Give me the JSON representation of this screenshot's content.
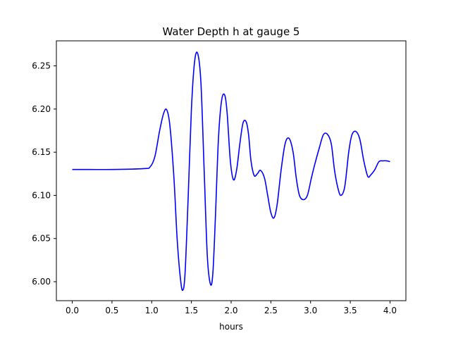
{
  "chart_data": {
    "type": "line",
    "title": "Water Depth h at gauge 5",
    "xlabel": "hours",
    "ylabel": "",
    "xlim": [
      -0.2,
      4.2
    ],
    "ylim": [
      5.978,
      6.279
    ],
    "xticks": [
      {
        "value": 0.0,
        "label": "0.0"
      },
      {
        "value": 0.5,
        "label": "0.5"
      },
      {
        "value": 1.0,
        "label": "1.0"
      },
      {
        "value": 1.5,
        "label": "1.5"
      },
      {
        "value": 2.0,
        "label": "2.0"
      },
      {
        "value": 2.5,
        "label": "2.5"
      },
      {
        "value": 3.0,
        "label": "3.0"
      },
      {
        "value": 3.5,
        "label": "3.5"
      },
      {
        "value": 4.0,
        "label": "4.0"
      }
    ],
    "yticks": [
      {
        "value": 6.0,
        "label": "6.00"
      },
      {
        "value": 6.05,
        "label": "6.05"
      },
      {
        "value": 6.1,
        "label": "6.10"
      },
      {
        "value": 6.15,
        "label": "6.15"
      },
      {
        "value": 6.2,
        "label": "6.20"
      },
      {
        "value": 6.25,
        "label": "6.25"
      }
    ],
    "grid": false,
    "legend": "none",
    "series": [
      {
        "color": "#0000ff",
        "x": [
          0.0,
          0.5,
          0.9,
          0.98,
          1.04,
          1.1,
          1.15,
          1.19,
          1.23,
          1.28,
          1.32,
          1.36,
          1.39,
          1.42,
          1.46,
          1.5,
          1.54,
          1.58,
          1.62,
          1.66,
          1.7,
          1.74,
          1.77,
          1.8,
          1.84,
          1.88,
          1.92,
          1.95,
          1.99,
          2.03,
          2.07,
          2.11,
          2.15,
          2.19,
          2.22,
          2.25,
          2.29,
          2.33,
          2.37,
          2.42,
          2.46,
          2.5,
          2.54,
          2.58,
          2.63,
          2.68,
          2.73,
          2.78,
          2.82,
          2.86,
          2.91,
          2.96,
          3.01,
          3.05,
          3.11,
          3.16,
          3.21,
          3.26,
          3.3,
          3.34,
          3.38,
          3.43,
          3.48,
          3.52,
          3.57,
          3.62,
          3.67,
          3.72,
          3.76,
          3.81,
          3.86,
          3.91,
          3.96,
          4.0
        ],
        "y": [
          6.13,
          6.13,
          6.131,
          6.133,
          6.145,
          6.175,
          6.195,
          6.199,
          6.18,
          6.12,
          6.05,
          6.005,
          5.99,
          6.01,
          6.1,
          6.2,
          6.255,
          6.264,
          6.23,
          6.13,
          6.03,
          5.997,
          6.01,
          6.07,
          6.165,
          6.21,
          6.216,
          6.195,
          6.14,
          6.118,
          6.13,
          6.16,
          6.184,
          6.185,
          6.17,
          6.14,
          6.123,
          6.125,
          6.129,
          6.12,
          6.1,
          6.08,
          6.074,
          6.09,
          6.13,
          6.16,
          6.166,
          6.15,
          6.12,
          6.1,
          6.095,
          6.1,
          6.12,
          6.135,
          6.155,
          6.17,
          6.171,
          6.16,
          6.13,
          6.11,
          6.1,
          6.11,
          6.15,
          6.17,
          6.174,
          6.165,
          6.14,
          6.122,
          6.124,
          6.13,
          6.139,
          6.14,
          6.14,
          6.139
        ]
      }
    ]
  }
}
